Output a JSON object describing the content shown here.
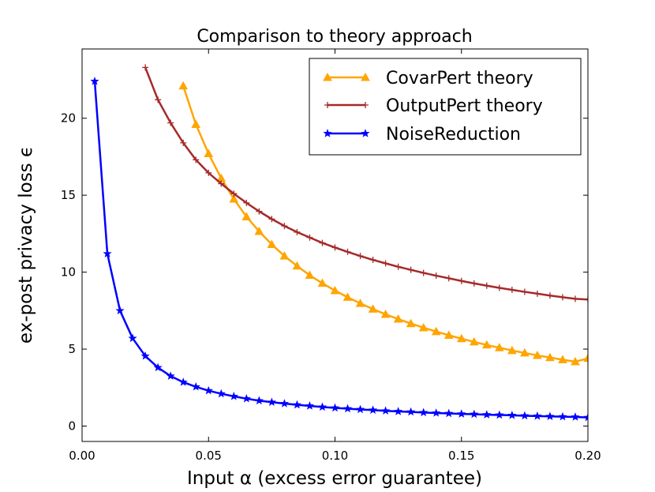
{
  "chart_data": {
    "type": "line",
    "title": "Comparison to theory approach",
    "xlabel": "Input α (excess error guarantee)",
    "ylabel": "ex-post privacy loss ϵ",
    "xlim": [
      0.0,
      0.2
    ],
    "ylim": [
      -1,
      24.5
    ],
    "xticks": [
      0.0,
      0.05,
      0.1,
      0.15,
      0.2
    ],
    "xtick_labels": [
      "0.00",
      "0.05",
      "0.10",
      "0.15",
      "0.20"
    ],
    "yticks": [
      0,
      5,
      10,
      15,
      20
    ],
    "ytick_labels": [
      "0",
      "5",
      "10",
      "15",
      "20"
    ],
    "grid": false,
    "legend_position": "top-right",
    "series": [
      {
        "name": "CovarPert theory",
        "color": "#ffa500",
        "marker": "triangle",
        "x": [
          0.04,
          0.045,
          0.05,
          0.055,
          0.06,
          0.065,
          0.07,
          0.075,
          0.08,
          0.085,
          0.09,
          0.095,
          0.1,
          0.105,
          0.11,
          0.115,
          0.12,
          0.125,
          0.13,
          0.135,
          0.14,
          0.145,
          0.15,
          0.155,
          0.16,
          0.165,
          0.17,
          0.175,
          0.18,
          0.185,
          0.19,
          0.195,
          0.2
        ],
        "y": [
          22.1,
          19.6,
          17.7,
          16.1,
          14.75,
          13.6,
          12.65,
          11.8,
          11.05,
          10.4,
          9.8,
          9.28,
          8.8,
          8.37,
          7.97,
          7.6,
          7.26,
          6.95,
          6.66,
          6.39,
          6.14,
          5.9,
          5.68,
          5.47,
          5.27,
          5.09,
          4.91,
          4.75,
          4.59,
          4.45,
          4.31,
          4.18,
          4.4
        ]
      },
      {
        "name": "OutputPert theory",
        "color": "#a52a2a",
        "marker": "plus",
        "x": [
          0.025,
          0.03,
          0.035,
          0.04,
          0.045,
          0.05,
          0.055,
          0.06,
          0.065,
          0.07,
          0.075,
          0.08,
          0.085,
          0.09,
          0.095,
          0.1,
          0.105,
          0.11,
          0.115,
          0.12,
          0.125,
          0.13,
          0.135,
          0.14,
          0.145,
          0.15,
          0.155,
          0.16,
          0.165,
          0.17,
          0.175,
          0.18,
          0.185,
          0.19,
          0.195,
          0.2
        ],
        "y": [
          23.3,
          21.2,
          19.7,
          18.4,
          17.3,
          16.45,
          15.75,
          15.1,
          14.5,
          13.95,
          13.45,
          13.0,
          12.6,
          12.25,
          11.9,
          11.6,
          11.32,
          11.05,
          10.8,
          10.57,
          10.35,
          10.15,
          9.95,
          9.77,
          9.6,
          9.43,
          9.27,
          9.12,
          8.98,
          8.85,
          8.72,
          8.6,
          8.48,
          8.37,
          8.27,
          8.22
        ]
      },
      {
        "name": "NoiseReduction",
        "color": "#0000ff",
        "marker": "star",
        "x": [
          0.005,
          0.01,
          0.015,
          0.02,
          0.025,
          0.03,
          0.035,
          0.04,
          0.045,
          0.05,
          0.055,
          0.06,
          0.065,
          0.07,
          0.075,
          0.08,
          0.085,
          0.09,
          0.095,
          0.1,
          0.105,
          0.11,
          0.115,
          0.12,
          0.125,
          0.13,
          0.135,
          0.14,
          0.145,
          0.15,
          0.155,
          0.16,
          0.165,
          0.17,
          0.175,
          0.18,
          0.185,
          0.19,
          0.195,
          0.2
        ],
        "y": [
          22.4,
          11.2,
          7.5,
          5.7,
          4.55,
          3.8,
          3.25,
          2.85,
          2.55,
          2.3,
          2.1,
          1.93,
          1.78,
          1.65,
          1.55,
          1.46,
          1.38,
          1.31,
          1.24,
          1.18,
          1.13,
          1.08,
          1.04,
          0.99,
          0.95,
          0.92,
          0.88,
          0.85,
          0.82,
          0.79,
          0.77,
          0.74,
          0.72,
          0.7,
          0.67,
          0.65,
          0.63,
          0.61,
          0.59,
          0.56
        ]
      }
    ]
  }
}
